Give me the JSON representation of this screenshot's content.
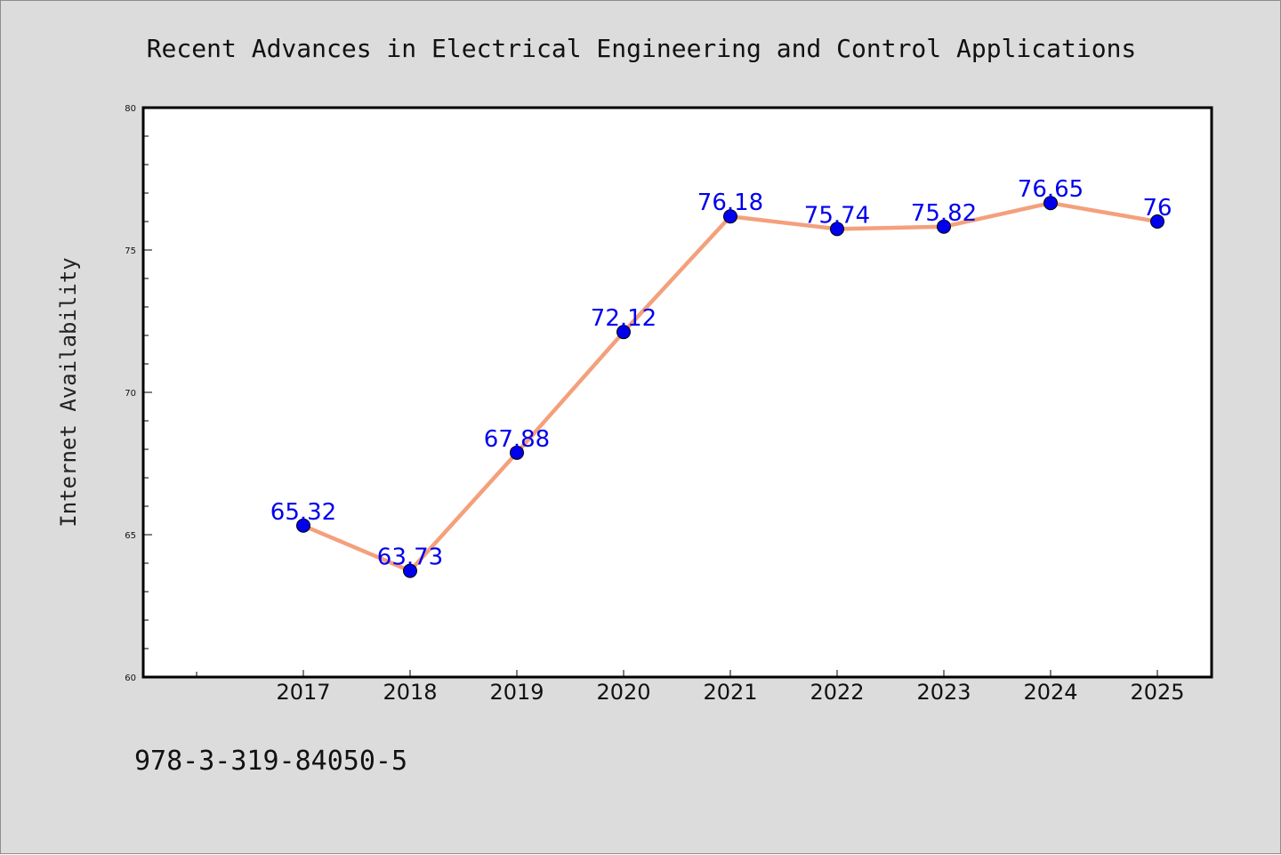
{
  "chart_data": {
    "type": "line",
    "title": "Recent Advances in Electrical Engineering and Control Applications",
    "xlabel": "",
    "ylabel": "Internet Availability",
    "categories": [
      "2017",
      "2018",
      "2019",
      "2020",
      "2021",
      "2022",
      "2023",
      "2024",
      "2025"
    ],
    "series": [
      {
        "values": [
          65.32,
          63.73,
          67.88,
          72.12,
          76.18,
          75.74,
          75.82,
          76.65,
          76
        ],
        "labels": [
          "65.32",
          "63.73",
          "67.88",
          "72.12",
          "76.18",
          "75.74",
          "75.82",
          "76.65",
          "76"
        ],
        "line_color": "#f4a07c",
        "marker_color": "#0000ee",
        "label_color": "#0000ee"
      }
    ],
    "ylim": [
      60,
      80
    ],
    "yticks": [
      "60",
      "65",
      "70",
      "75",
      "80"
    ],
    "grid": false,
    "legend": "none",
    "annotation": "978-3-319-84050-5"
  }
}
